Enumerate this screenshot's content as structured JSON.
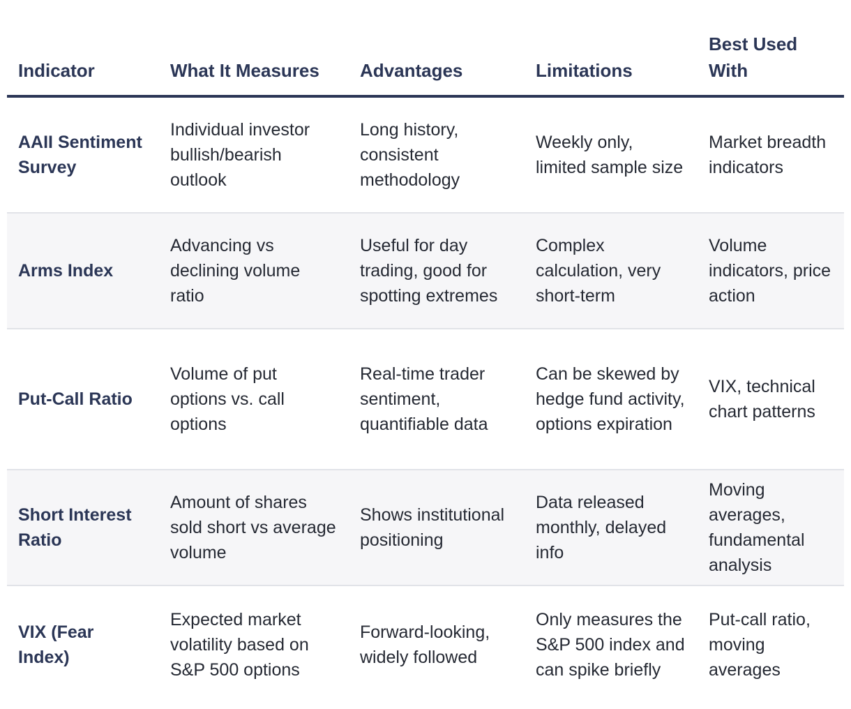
{
  "table": {
    "headers": [
      "Indicator",
      "What It Measures",
      "Advantages",
      "Limitations",
      "Best Used With"
    ],
    "rows": [
      [
        "AAII Sentiment Survey",
        "Individual investor bullish/bearish outlook",
        "Long history, consistent methodology",
        "Weekly only, limited sample size",
        "Market breadth indicators"
      ],
      [
        "Arms Index",
        "Advancing vs declining volume ratio",
        "Useful for day trading, good for spotting extremes",
        "Complex calculation, very short-term",
        "Volume indicators, price action"
      ],
      [
        "Put-Call Ratio",
        "Volume of put options vs. call options",
        "Real-time trader sentiment, quantifiable data",
        "Can be skewed by hedge fund activity, options expiration",
        "VIX, technical chart patterns"
      ],
      [
        "Short Interest Ratio",
        "Amount of shares sold short vs average volume",
        "Shows institutional positioning",
        "Data released monthly, delayed info",
        "Moving averages, fundamental analysis"
      ],
      [
        "VIX (Fear Index)",
        "Expected market volatility based on S&P 500 options",
        "Forward-looking, widely followed",
        "Only measures the S&P 500 index and can spike briefly",
        "Put-call ratio, moving averages"
      ]
    ]
  },
  "colors": {
    "header_text": "#2b3656",
    "header_rule": "#2b3656",
    "body_text": "#252933",
    "row_divider": "#e1e3e8",
    "alt_row_bg": "#f6f6f8"
  }
}
